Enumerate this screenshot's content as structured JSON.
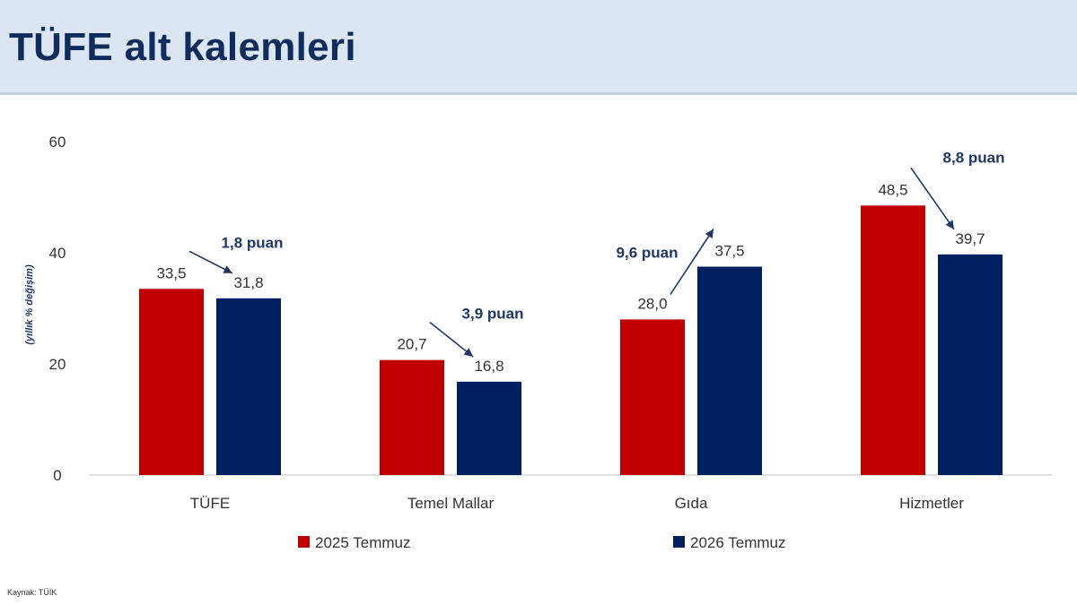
{
  "header": {
    "title": "TÜFE alt kalemleri"
  },
  "source": "Kaynak: TÜİK",
  "chart_data": {
    "type": "bar",
    "title": "TÜFE alt kalemleri",
    "ylabel": "(yıllık % değişim)",
    "xlabel": "",
    "ylim": [
      0,
      60
    ],
    "yticks": [
      "0",
      "20",
      "40",
      "60"
    ],
    "grid": false,
    "legend_position": "bottom",
    "categories": [
      "TÜFE",
      "Temel Mallar",
      "Gıda",
      "Hizmetler"
    ],
    "series": [
      {
        "name": "2025 Temmuz",
        "color": "#c00000",
        "values": [
          33.5,
          20.7,
          28.0,
          48.5
        ],
        "labels": [
          "33,5",
          "20,7",
          "28,0",
          "48,5"
        ]
      },
      {
        "name": "2026 Temmuz",
        "color": "#002060",
        "values": [
          31.8,
          16.8,
          37.5,
          39.7
        ],
        "labels": [
          "31,8",
          "16,8",
          "37,5",
          "39,7"
        ]
      }
    ],
    "annotations": [
      "1,8 puan",
      "3,9 puan",
      "9,6 puan",
      "8,8 puan"
    ]
  }
}
